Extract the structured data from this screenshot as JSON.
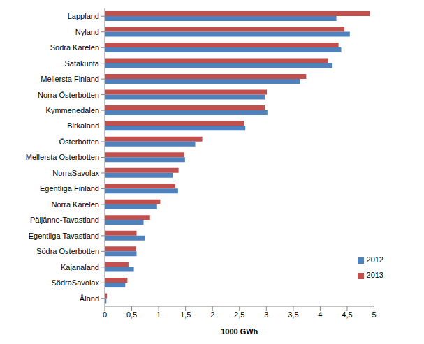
{
  "chart_data": {
    "type": "bar",
    "orientation": "horizontal",
    "x_label": "1000 GWh",
    "categories": [
      "Lappland",
      "Nyland",
      "Södra Karelen",
      "Satakunta",
      "Mellersta Finland",
      "Norra Österbotten",
      "Kymmenedalen",
      "Birkaland",
      "Österbotten",
      "Mellersta Österbotten",
      "NorraSavolax",
      "Egentliga Finland",
      "Norra Karelen",
      "Päijänne-Tavastland",
      "Egentliga Tavastland",
      "Södra Österbotten",
      "Kajanaland",
      "SödraSavolax",
      "Åland"
    ],
    "series": [
      {
        "name": "2013",
        "color": "#c0504d",
        "values": [
          4.92,
          4.45,
          4.34,
          4.15,
          3.74,
          3.01,
          2.97,
          2.59,
          1.81,
          1.48,
          1.37,
          1.31,
          1.03,
          0.84,
          0.59,
          0.58,
          0.44,
          0.42,
          0.04
        ]
      },
      {
        "name": "2012",
        "color": "#4f81bd",
        "values": [
          4.3,
          4.55,
          4.39,
          4.23,
          3.63,
          2.98,
          3.02,
          2.61,
          1.68,
          1.49,
          1.26,
          1.36,
          0.97,
          0.72,
          0.75,
          0.59,
          0.54,
          0.38,
          0.03
        ]
      }
    ],
    "xlim": [
      0,
      5
    ],
    "xticks": [
      0,
      {
        "value": 0.5,
        "label": "0,5"
      },
      1,
      {
        "value": 1.5,
        "label": "1,5"
      },
      2,
      {
        "value": 2.5,
        "label": "2,5"
      },
      3,
      {
        "value": 3.5,
        "label": "3,5"
      },
      4,
      {
        "value": 4.5,
        "label": "4,5"
      },
      5
    ],
    "grid": false,
    "legend": "lower right"
  }
}
